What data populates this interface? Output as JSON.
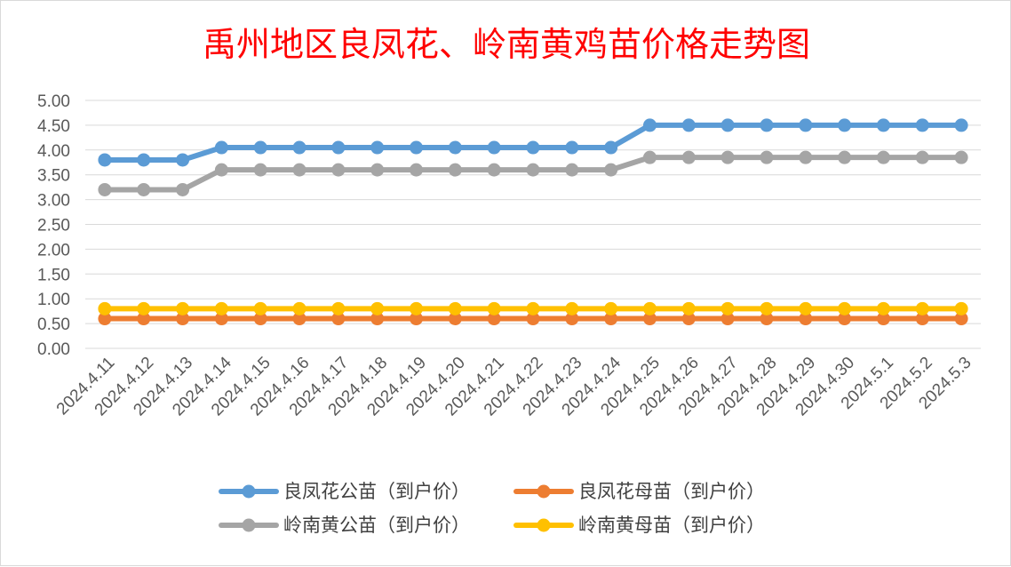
{
  "chart_data": {
    "type": "line",
    "title": "禹州地区良凤花、岭南黄鸡苗价格走势图",
    "xlabel": "",
    "ylabel": "",
    "ylim": [
      0,
      5
    ],
    "y_ticks": [
      "0.00",
      "0.50",
      "1.00",
      "1.50",
      "2.00",
      "2.50",
      "3.00",
      "3.50",
      "4.00",
      "4.50",
      "5.00"
    ],
    "categories": [
      "2024.4.11",
      "2024.4.12",
      "2024.4.13",
      "2024.4.14",
      "2024.4.15",
      "2024.4.16",
      "2024.4.17",
      "2024.4.18",
      "2024.4.19",
      "2024.4.20",
      "2024.4.21",
      "2024.4.22",
      "2024.4.23",
      "2024.4.24",
      "2024.4.25",
      "2024.4.26",
      "2024.4.27",
      "2024.4.28",
      "2024.4.29",
      "2024.4.30",
      "2024.5.1",
      "2024.5.2",
      "2024.5.3"
    ],
    "series": [
      {
        "name": "良凤花公苗（到户价）",
        "color": "#5b9bd5",
        "values": [
          3.8,
          3.8,
          3.8,
          4.05,
          4.05,
          4.05,
          4.05,
          4.05,
          4.05,
          4.05,
          4.05,
          4.05,
          4.05,
          4.05,
          4.5,
          4.5,
          4.5,
          4.5,
          4.5,
          4.5,
          4.5,
          4.5,
          4.5
        ]
      },
      {
        "name": "良凤花母苗（到户价）",
        "color": "#ed7d31",
        "values": [
          0.6,
          0.6,
          0.6,
          0.6,
          0.6,
          0.6,
          0.6,
          0.6,
          0.6,
          0.6,
          0.6,
          0.6,
          0.6,
          0.6,
          0.6,
          0.6,
          0.6,
          0.6,
          0.6,
          0.6,
          0.6,
          0.6,
          0.6
        ]
      },
      {
        "name": "岭南黄公苗（到户价）",
        "color": "#a5a5a5",
        "values": [
          3.2,
          3.2,
          3.2,
          3.6,
          3.6,
          3.6,
          3.6,
          3.6,
          3.6,
          3.6,
          3.6,
          3.6,
          3.6,
          3.6,
          3.85,
          3.85,
          3.85,
          3.85,
          3.85,
          3.85,
          3.85,
          3.85,
          3.85
        ]
      },
      {
        "name": "岭南黄母苗（到户价）",
        "color": "#ffc000",
        "values": [
          0.8,
          0.8,
          0.8,
          0.8,
          0.8,
          0.8,
          0.8,
          0.8,
          0.8,
          0.8,
          0.8,
          0.8,
          0.8,
          0.8,
          0.8,
          0.8,
          0.8,
          0.8,
          0.8,
          0.8,
          0.8,
          0.8,
          0.8
        ]
      }
    ],
    "legend_position": "bottom",
    "grid": true
  }
}
